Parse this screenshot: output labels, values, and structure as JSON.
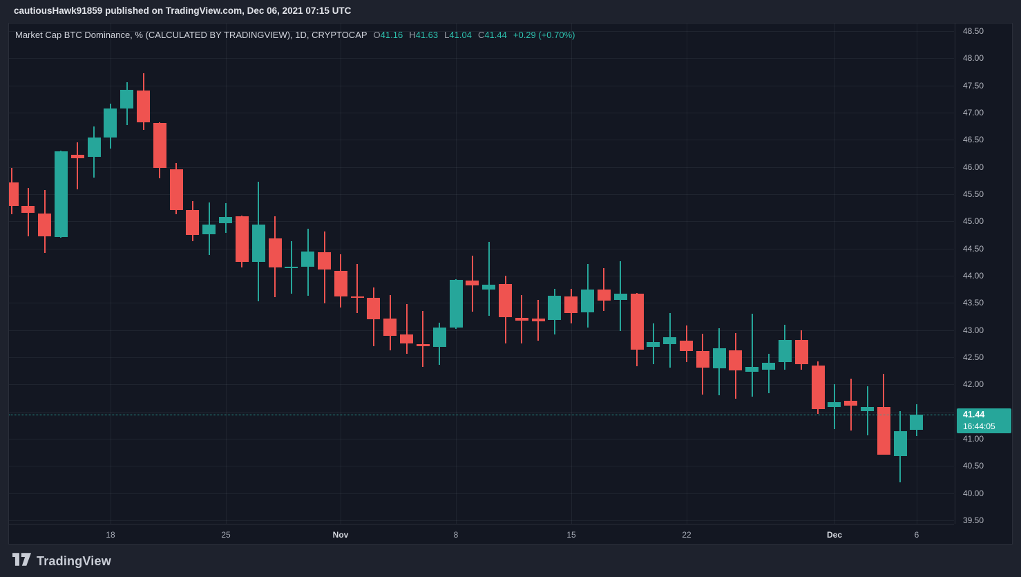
{
  "header": {
    "text": "cautiousHawk91859 published on TradingView.com, Dec 06, 2021 07:15 UTC"
  },
  "legend": {
    "title": "Market Cap BTC Dominance, % (CALCULATED BY TRADINGVIEW), 1D, CRYPTOCAP",
    "ohlc": [
      {
        "label": "O",
        "value": "41.16"
      },
      {
        "label": "H",
        "value": "41.63"
      },
      {
        "label": "L",
        "value": "41.04"
      },
      {
        "label": "C",
        "value": "41.44"
      }
    ],
    "change": "+0.29 (+0.70%)"
  },
  "price_label": {
    "price": "41.44",
    "countdown": "16:44:05"
  },
  "footer": {
    "brand": "TradingView"
  },
  "colors": {
    "up": "#26a69a",
    "down": "#ef5350",
    "badge": "#26a69a",
    "legend_value": "#2ebfad",
    "background": "#131722",
    "outer_background": "#1e222d"
  },
  "chart_data": {
    "type": "candlestick",
    "title": "Market Cap BTC Dominance, % (CALCULATED BY TRADINGVIEW)",
    "interval": "1D",
    "symbol": "CRYPTOCAP",
    "legend_position": "top-left",
    "grid": true,
    "current": {
      "open": 41.16,
      "high": 41.63,
      "low": 41.04,
      "close": 41.44,
      "change": "+0.29 (+0.70%)"
    },
    "y_axis": {
      "min": 39.5,
      "max": 48.5,
      "step": 0.5,
      "ticks": [
        "48.50",
        "48.00",
        "47.50",
        "47.00",
        "46.50",
        "46.00",
        "45.50",
        "45.00",
        "44.50",
        "44.00",
        "43.50",
        "43.00",
        "42.50",
        "42.00",
        "41.50",
        "41.00",
        "40.50",
        "40.00",
        "39.50"
      ]
    },
    "x_ticks": [
      {
        "index": 6,
        "label": "18",
        "emphasis": false
      },
      {
        "index": 13,
        "label": "25",
        "emphasis": false
      },
      {
        "index": 20,
        "label": "Nov",
        "emphasis": true
      },
      {
        "index": 27,
        "label": "8",
        "emphasis": false
      },
      {
        "index": 34,
        "label": "15",
        "emphasis": false
      },
      {
        "index": 41,
        "label": "22",
        "emphasis": false
      },
      {
        "index": 50,
        "label": "Dec",
        "emphasis": true
      },
      {
        "index": 55,
        "label": "6",
        "emphasis": false
      }
    ],
    "candles_format": [
      "open",
      "high",
      "low",
      "close"
    ],
    "candles": [
      [
        45.72,
        45.98,
        45.13,
        45.29
      ],
      [
        45.29,
        45.61,
        44.72,
        45.16
      ],
      [
        45.14,
        45.57,
        44.41,
        44.72
      ],
      [
        44.72,
        46.3,
        44.7,
        46.29
      ],
      [
        46.22,
        46.45,
        45.59,
        46.16
      ],
      [
        46.18,
        46.75,
        45.81,
        46.54
      ],
      [
        46.54,
        47.16,
        46.34,
        47.08
      ],
      [
        47.08,
        47.56,
        46.77,
        47.42
      ],
      [
        47.41,
        47.73,
        46.69,
        46.82
      ],
      [
        46.81,
        46.82,
        45.79,
        45.98
      ],
      [
        45.96,
        46.07,
        45.13,
        45.21
      ],
      [
        45.21,
        45.37,
        44.63,
        44.75
      ],
      [
        44.76,
        45.35,
        44.38,
        44.94
      ],
      [
        44.97,
        45.34,
        44.79,
        45.08
      ],
      [
        45.09,
        45.1,
        44.15,
        44.25
      ],
      [
        44.25,
        45.73,
        43.53,
        44.94
      ],
      [
        44.69,
        45.09,
        43.6,
        44.15
      ],
      [
        44.15,
        44.64,
        43.68,
        44.17
      ],
      [
        44.16,
        44.87,
        43.64,
        44.44
      ],
      [
        44.43,
        44.81,
        43.49,
        44.11
      ],
      [
        44.09,
        44.39,
        43.41,
        43.62
      ],
      [
        43.62,
        44.22,
        43.32,
        43.6
      ],
      [
        43.59,
        43.78,
        42.7,
        43.19
      ],
      [
        43.21,
        43.64,
        42.62,
        42.89
      ],
      [
        42.92,
        43.48,
        42.57,
        42.75
      ],
      [
        42.74,
        43.35,
        42.32,
        42.7
      ],
      [
        42.69,
        43.14,
        42.36,
        43.05
      ],
      [
        43.05,
        43.94,
        43.03,
        43.93
      ],
      [
        43.91,
        44.37,
        43.34,
        43.82
      ],
      [
        43.75,
        44.62,
        43.26,
        43.84
      ],
      [
        43.85,
        44.0,
        42.76,
        43.24
      ],
      [
        43.23,
        43.65,
        42.76,
        43.18
      ],
      [
        43.21,
        43.55,
        42.8,
        43.16
      ],
      [
        43.18,
        43.76,
        42.92,
        43.63
      ],
      [
        43.62,
        43.76,
        43.13,
        43.32
      ],
      [
        43.33,
        44.21,
        43.04,
        43.75
      ],
      [
        43.74,
        44.14,
        43.35,
        43.54
      ],
      [
        43.55,
        44.27,
        42.98,
        43.67
      ],
      [
        43.67,
        43.68,
        42.33,
        42.64
      ],
      [
        42.69,
        43.12,
        42.37,
        42.78
      ],
      [
        42.74,
        43.31,
        42.3,
        42.87
      ],
      [
        42.8,
        43.09,
        42.41,
        42.61
      ],
      [
        42.62,
        42.93,
        41.81,
        42.32
      ],
      [
        42.29,
        43.03,
        41.8,
        42.66
      ],
      [
        42.63,
        42.95,
        41.74,
        42.26
      ],
      [
        42.23,
        43.3,
        41.78,
        42.32
      ],
      [
        42.27,
        42.56,
        41.83,
        42.4
      ],
      [
        42.41,
        43.1,
        42.28,
        42.82
      ],
      [
        42.82,
        42.99,
        42.26,
        42.38
      ],
      [
        42.35,
        42.43,
        41.47,
        41.55
      ],
      [
        41.58,
        42.0,
        41.17,
        41.67
      ],
      [
        41.7,
        42.1,
        41.15,
        41.61
      ],
      [
        41.51,
        41.96,
        41.06,
        41.59
      ],
      [
        41.58,
        42.19,
        40.7,
        40.7
      ],
      [
        40.68,
        41.51,
        40.2,
        41.14
      ],
      [
        41.16,
        41.63,
        41.04,
        41.44
      ]
    ]
  }
}
